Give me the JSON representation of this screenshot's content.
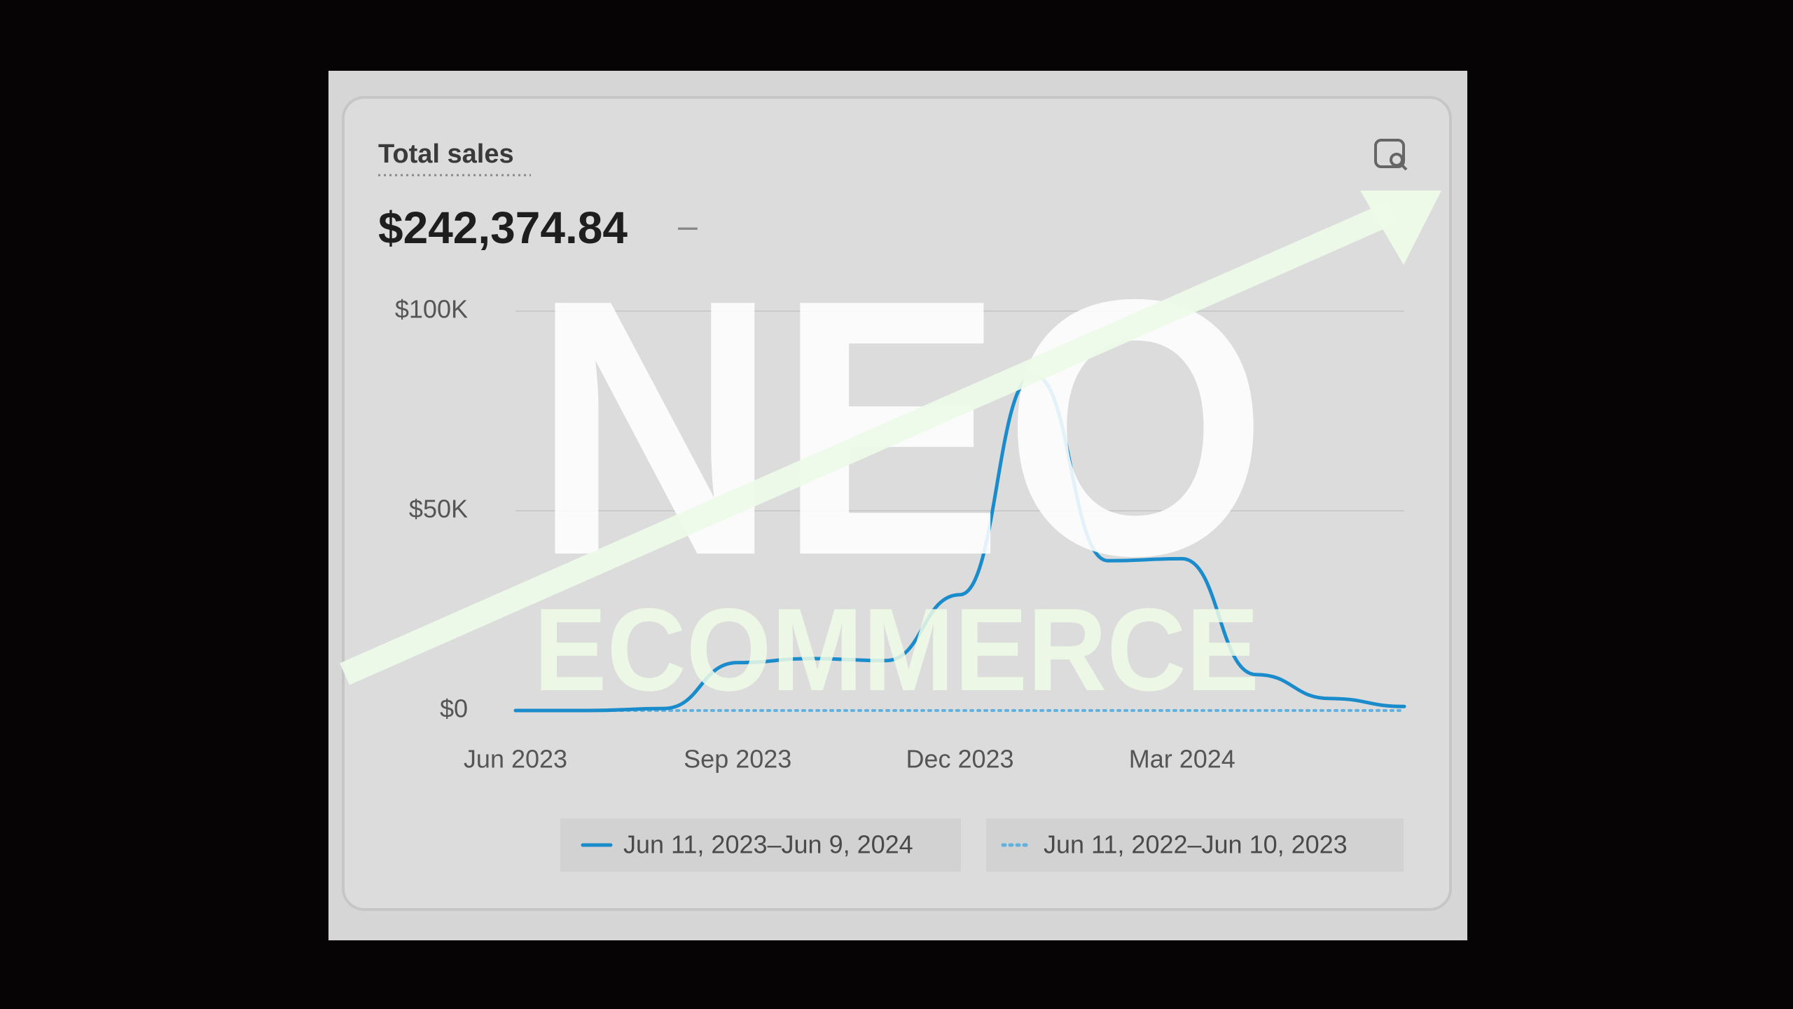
{
  "chart_data": {
    "type": "line",
    "title": "Total sales",
    "subtitle": "$242,374.84",
    "annotations": [
      "–",
      "NEO",
      "ECOMMERCE"
    ],
    "categories": [
      "Jun 2023",
      null,
      null,
      "Sep 2023",
      null,
      null,
      "Dec 2023",
      null,
      null,
      "Mar 2024",
      null,
      null,
      null
    ],
    "series": [
      {
        "name": "Jun 11, 2023–Jun 9, 2024",
        "color": "#1b8ccb",
        "dashed": false,
        "values": [
          0,
          0,
          500,
          12000,
          13000,
          12500,
          29000,
          84000,
          37500,
          38000,
          9000,
          3000,
          1000
        ]
      },
      {
        "name": "Jun 11, 2022–Jun 10, 2023",
        "color": "#62b0dc",
        "dashed": true,
        "values": [
          0,
          0,
          0,
          0,
          0,
          0,
          0,
          0,
          0,
          0,
          0,
          0,
          0
        ]
      }
    ],
    "ylim": [
      0,
      100000
    ],
    "yticks": [
      {
        "value": 0,
        "label": "$0"
      },
      {
        "value": 50000,
        "label": "$50K"
      },
      {
        "value": 100000,
        "label": "$100K"
      }
    ],
    "grid": true
  }
}
